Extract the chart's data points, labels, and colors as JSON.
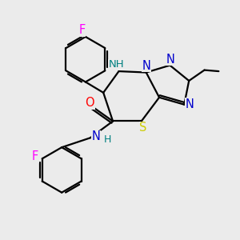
{
  "background_color": "#ebebeb",
  "bond_color": "#000000",
  "bond_width": 1.6,
  "atom_colors": {
    "H": "#008080",
    "N": "#0000cc",
    "O": "#ff0000",
    "F": "#ff00ff",
    "S": "#cccc00"
  },
  "font_size": 10.5
}
